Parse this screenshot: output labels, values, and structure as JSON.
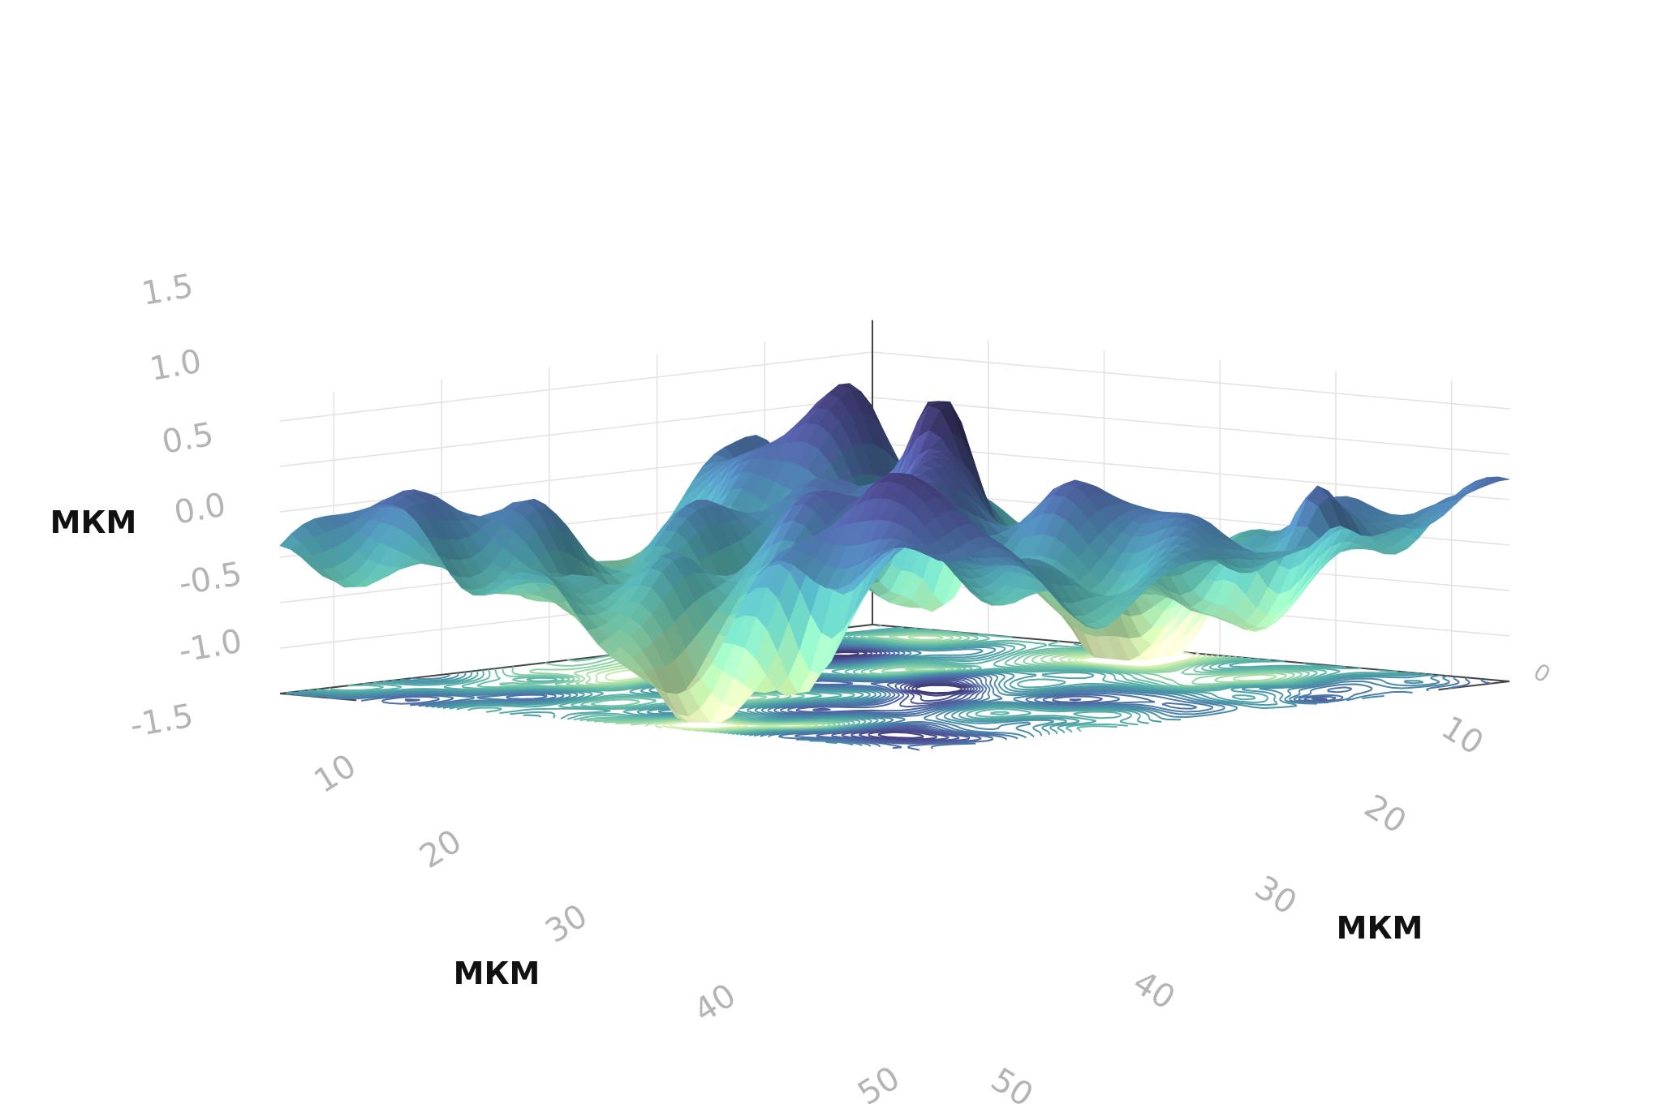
{
  "chart_data": {
    "type": "surface",
    "subtype": "3d-surface-with-floor-contours",
    "colorscale": [
      "#fbfbc6",
      "#c3eaa8",
      "#8fd3a6",
      "#5fb8a7",
      "#4a9aa6",
      "#4a7ba8",
      "#4e5c9e",
      "#45417f",
      "#2e2a4f"
    ],
    "x_axis": {
      "title": "МКМ",
      "ticks": [
        0,
        10,
        20,
        30,
        40,
        50
      ],
      "range": [
        0,
        55
      ]
    },
    "y_axis": {
      "title": "МКМ",
      "ticks": [
        10,
        20,
        30,
        40,
        50
      ],
      "range": [
        0,
        55
      ]
    },
    "z_axis": {
      "title": "МКМ",
      "ticks": [
        -1.5,
        -1.0,
        -0.5,
        0.0,
        0.5,
        1.0,
        1.5
      ],
      "range": [
        -1.5,
        1.7
      ]
    },
    "grid": true,
    "contours_on_floor": true
  },
  "labels": {
    "z_title": "МКМ",
    "x_title": "МКМ",
    "y_title": "МКМ",
    "z_ticks": [
      "-1.5",
      "-1.0",
      "-0.5",
      "0.0",
      "0.5",
      "1.0",
      "1.5"
    ],
    "x_ticks": [
      "0",
      "10",
      "20",
      "30",
      "40",
      "50"
    ],
    "y_ticks": [
      "10",
      "20",
      "30",
      "40",
      "50"
    ]
  }
}
